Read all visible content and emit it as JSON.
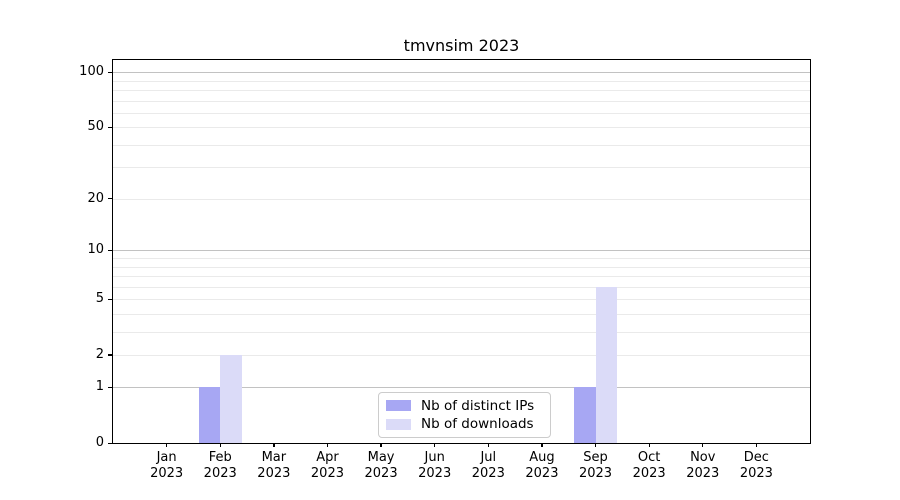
{
  "chart_data": {
    "type": "bar",
    "title": "tmvnsim 2023",
    "categories": [
      {
        "month": "Jan",
        "year": "2023"
      },
      {
        "month": "Feb",
        "year": "2023"
      },
      {
        "month": "Mar",
        "year": "2023"
      },
      {
        "month": "Apr",
        "year": "2023"
      },
      {
        "month": "May",
        "year": "2023"
      },
      {
        "month": "Jun",
        "year": "2023"
      },
      {
        "month": "Jul",
        "year": "2023"
      },
      {
        "month": "Aug",
        "year": "2023"
      },
      {
        "month": "Sep",
        "year": "2023"
      },
      {
        "month": "Oct",
        "year": "2023"
      },
      {
        "month": "Nov",
        "year": "2023"
      },
      {
        "month": "Dec",
        "year": "2023"
      }
    ],
    "series": [
      {
        "name": "Nb of distinct IPs",
        "color": "#a7a7f3",
        "values": [
          0,
          1,
          0,
          0,
          0,
          0,
          0,
          0,
          1,
          0,
          0,
          0
        ]
      },
      {
        "name": "Nb of downloads",
        "color": "#dbdbf8",
        "values": [
          0,
          2,
          0,
          0,
          0,
          0,
          0,
          0,
          6,
          0,
          0,
          0
        ]
      }
    ],
    "xlabel": "",
    "ylabel": "",
    "y_axis": {
      "scale": "log1p",
      "ylim": [
        0,
        117
      ],
      "tick_values": [
        0,
        1,
        2,
        5,
        10,
        20,
        50,
        100
      ],
      "major_grid_values": [
        1,
        10,
        100
      ],
      "minor_grid_values": [
        3,
        4,
        6,
        7,
        8,
        9,
        30,
        40,
        60,
        70,
        80,
        90
      ]
    },
    "legend": {
      "position": "lower center"
    },
    "grid": true,
    "colors": {
      "major_grid": "#c2c2c2",
      "minor_grid": "#eaeaea",
      "axis": "#000000",
      "legend_border": "#cccccc",
      "background": "#ffffff"
    }
  }
}
